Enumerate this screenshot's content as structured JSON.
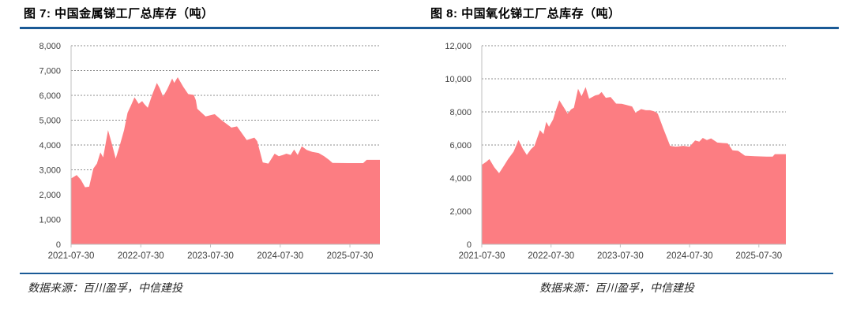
{
  "page": {
    "background": "#ffffff"
  },
  "styles": {
    "accent_blue": "#1A5A96",
    "area_fill": "#FC7D82",
    "grid_color": "#8C8C8C",
    "axis_color": "#BFBFBF",
    "tick_text_color": "#404040",
    "title_color": "#000000",
    "source_text_color": "#262626"
  },
  "figures": [
    {
      "source": "数据来源：百川盈孚，中信建投"
    },
    {
      "source": "数据来源：百川盈孚，中信建投"
    }
  ],
  "chart_data": [
    {
      "type": "area",
      "title": "图 7: 中国金属锑工厂总库存（吨）",
      "xlabel": "",
      "ylabel": "",
      "unit": "吨",
      "ylim": [
        0,
        8000
      ],
      "y_ticks": [
        0,
        1000,
        2000,
        3000,
        4000,
        5000,
        6000,
        7000,
        8000
      ],
      "x_tick_labels": [
        "2021-07-30",
        "2022-07-30",
        "2023-07-30",
        "2024-07-30",
        "2025-07-30"
      ],
      "x_tick_years": [
        0,
        1,
        2,
        3,
        4
      ],
      "x_max_years": 4.43,
      "grid": "dashed-horizontal",
      "legend": "none",
      "series": [
        {
          "name": "中国金属锑工厂总库存",
          "points": [
            [
              0.0,
              2650
            ],
            [
              0.08,
              2790
            ],
            [
              0.14,
              2600
            ],
            [
              0.2,
              2300
            ],
            [
              0.26,
              2320
            ],
            [
              0.32,
              3050
            ],
            [
              0.37,
              3250
            ],
            [
              0.42,
              3700
            ],
            [
              0.46,
              3500
            ],
            [
              0.53,
              4600
            ],
            [
              0.58,
              4100
            ],
            [
              0.64,
              3450
            ],
            [
              0.7,
              4000
            ],
            [
              0.76,
              4600
            ],
            [
              0.81,
              5300
            ],
            [
              0.86,
              5600
            ],
            [
              0.91,
              5920
            ],
            [
              0.97,
              5660
            ],
            [
              1.02,
              5770
            ],
            [
              1.05,
              5650
            ],
            [
              1.1,
              5500
            ],
            [
              1.16,
              6000
            ],
            [
              1.23,
              6500
            ],
            [
              1.27,
              6300
            ],
            [
              1.32,
              5950
            ],
            [
              1.38,
              6250
            ],
            [
              1.45,
              6680
            ],
            [
              1.48,
              6500
            ],
            [
              1.53,
              6730
            ],
            [
              1.61,
              6340
            ],
            [
              1.68,
              6050
            ],
            [
              1.76,
              6020
            ],
            [
              1.79,
              5800
            ],
            [
              1.81,
              5460
            ],
            [
              1.93,
              5150
            ],
            [
              2.06,
              5240
            ],
            [
              2.16,
              5000
            ],
            [
              2.3,
              4700
            ],
            [
              2.38,
              4750
            ],
            [
              2.52,
              4200
            ],
            [
              2.63,
              4300
            ],
            [
              2.67,
              4150
            ],
            [
              2.75,
              3300
            ],
            [
              2.83,
              3250
            ],
            [
              2.92,
              3650
            ],
            [
              2.98,
              3550
            ],
            [
              3.04,
              3600
            ],
            [
              3.09,
              3650
            ],
            [
              3.15,
              3600
            ],
            [
              3.2,
              3820
            ],
            [
              3.25,
              3600
            ],
            [
              3.31,
              3950
            ],
            [
              3.38,
              3800
            ],
            [
              3.46,
              3720
            ],
            [
              3.55,
              3680
            ],
            [
              3.63,
              3550
            ],
            [
              3.7,
              3400
            ],
            [
              3.75,
              3280
            ],
            [
              3.97,
              3270
            ],
            [
              4.19,
              3270
            ],
            [
              4.24,
              3400
            ],
            [
              4.43,
              3400
            ]
          ]
        }
      ]
    },
    {
      "type": "area",
      "title": "图 8: 中国氧化锑工厂总库存（吨）",
      "xlabel": "",
      "ylabel": "",
      "unit": "吨",
      "ylim": [
        0,
        12000
      ],
      "y_ticks": [
        0,
        2000,
        4000,
        6000,
        8000,
        10000,
        12000
      ],
      "x_tick_labels": [
        "2021-07-30",
        "2022-07-30",
        "2023-07-30",
        "2024-07-30",
        "2025-07-30"
      ],
      "x_tick_years": [
        0,
        1,
        2,
        3,
        4
      ],
      "x_max_years": 4.39,
      "grid": "dashed-horizontal",
      "legend": "none",
      "series": [
        {
          "name": "中国氧化锑工厂总库存",
          "points": [
            [
              0.0,
              4800
            ],
            [
              0.07,
              5000
            ],
            [
              0.11,
              5150
            ],
            [
              0.18,
              4650
            ],
            [
              0.25,
              4300
            ],
            [
              0.32,
              4750
            ],
            [
              0.38,
              5150
            ],
            [
              0.46,
              5600
            ],
            [
              0.53,
              6300
            ],
            [
              0.59,
              5800
            ],
            [
              0.65,
              5400
            ],
            [
              0.71,
              5750
            ],
            [
              0.76,
              5950
            ],
            [
              0.84,
              6900
            ],
            [
              0.89,
              6650
            ],
            [
              0.93,
              7400
            ],
            [
              0.97,
              7100
            ],
            [
              1.03,
              7550
            ],
            [
              1.07,
              8100
            ],
            [
              1.12,
              8700
            ],
            [
              1.18,
              8300
            ],
            [
              1.24,
              7900
            ],
            [
              1.29,
              8150
            ],
            [
              1.33,
              8250
            ],
            [
              1.39,
              9400
            ],
            [
              1.44,
              8950
            ],
            [
              1.5,
              9500
            ],
            [
              1.55,
              8800
            ],
            [
              1.64,
              9000
            ],
            [
              1.69,
              9050
            ],
            [
              1.73,
              9200
            ],
            [
              1.79,
              8850
            ],
            [
              1.86,
              8900
            ],
            [
              1.94,
              8500
            ],
            [
              2.02,
              8490
            ],
            [
              2.09,
              8420
            ],
            [
              2.17,
              8330
            ],
            [
              2.22,
              7950
            ],
            [
              2.3,
              8170
            ],
            [
              2.37,
              8100
            ],
            [
              2.43,
              8100
            ],
            [
              2.49,
              8030
            ],
            [
              2.54,
              7900
            ],
            [
              2.62,
              7000
            ],
            [
              2.72,
              5950
            ],
            [
              2.8,
              5900
            ],
            [
              2.91,
              5950
            ],
            [
              3.0,
              5900
            ],
            [
              3.08,
              6270
            ],
            [
              3.14,
              6200
            ],
            [
              3.19,
              6430
            ],
            [
              3.25,
              6300
            ],
            [
              3.31,
              6400
            ],
            [
              3.4,
              6150
            ],
            [
              3.48,
              6120
            ],
            [
              3.55,
              6100
            ],
            [
              3.62,
              5680
            ],
            [
              3.7,
              5650
            ],
            [
              3.8,
              5350
            ],
            [
              3.94,
              5320
            ],
            [
              4.11,
              5300
            ],
            [
              4.2,
              5300
            ],
            [
              4.23,
              5450
            ],
            [
              4.39,
              5450
            ]
          ]
        }
      ]
    }
  ]
}
